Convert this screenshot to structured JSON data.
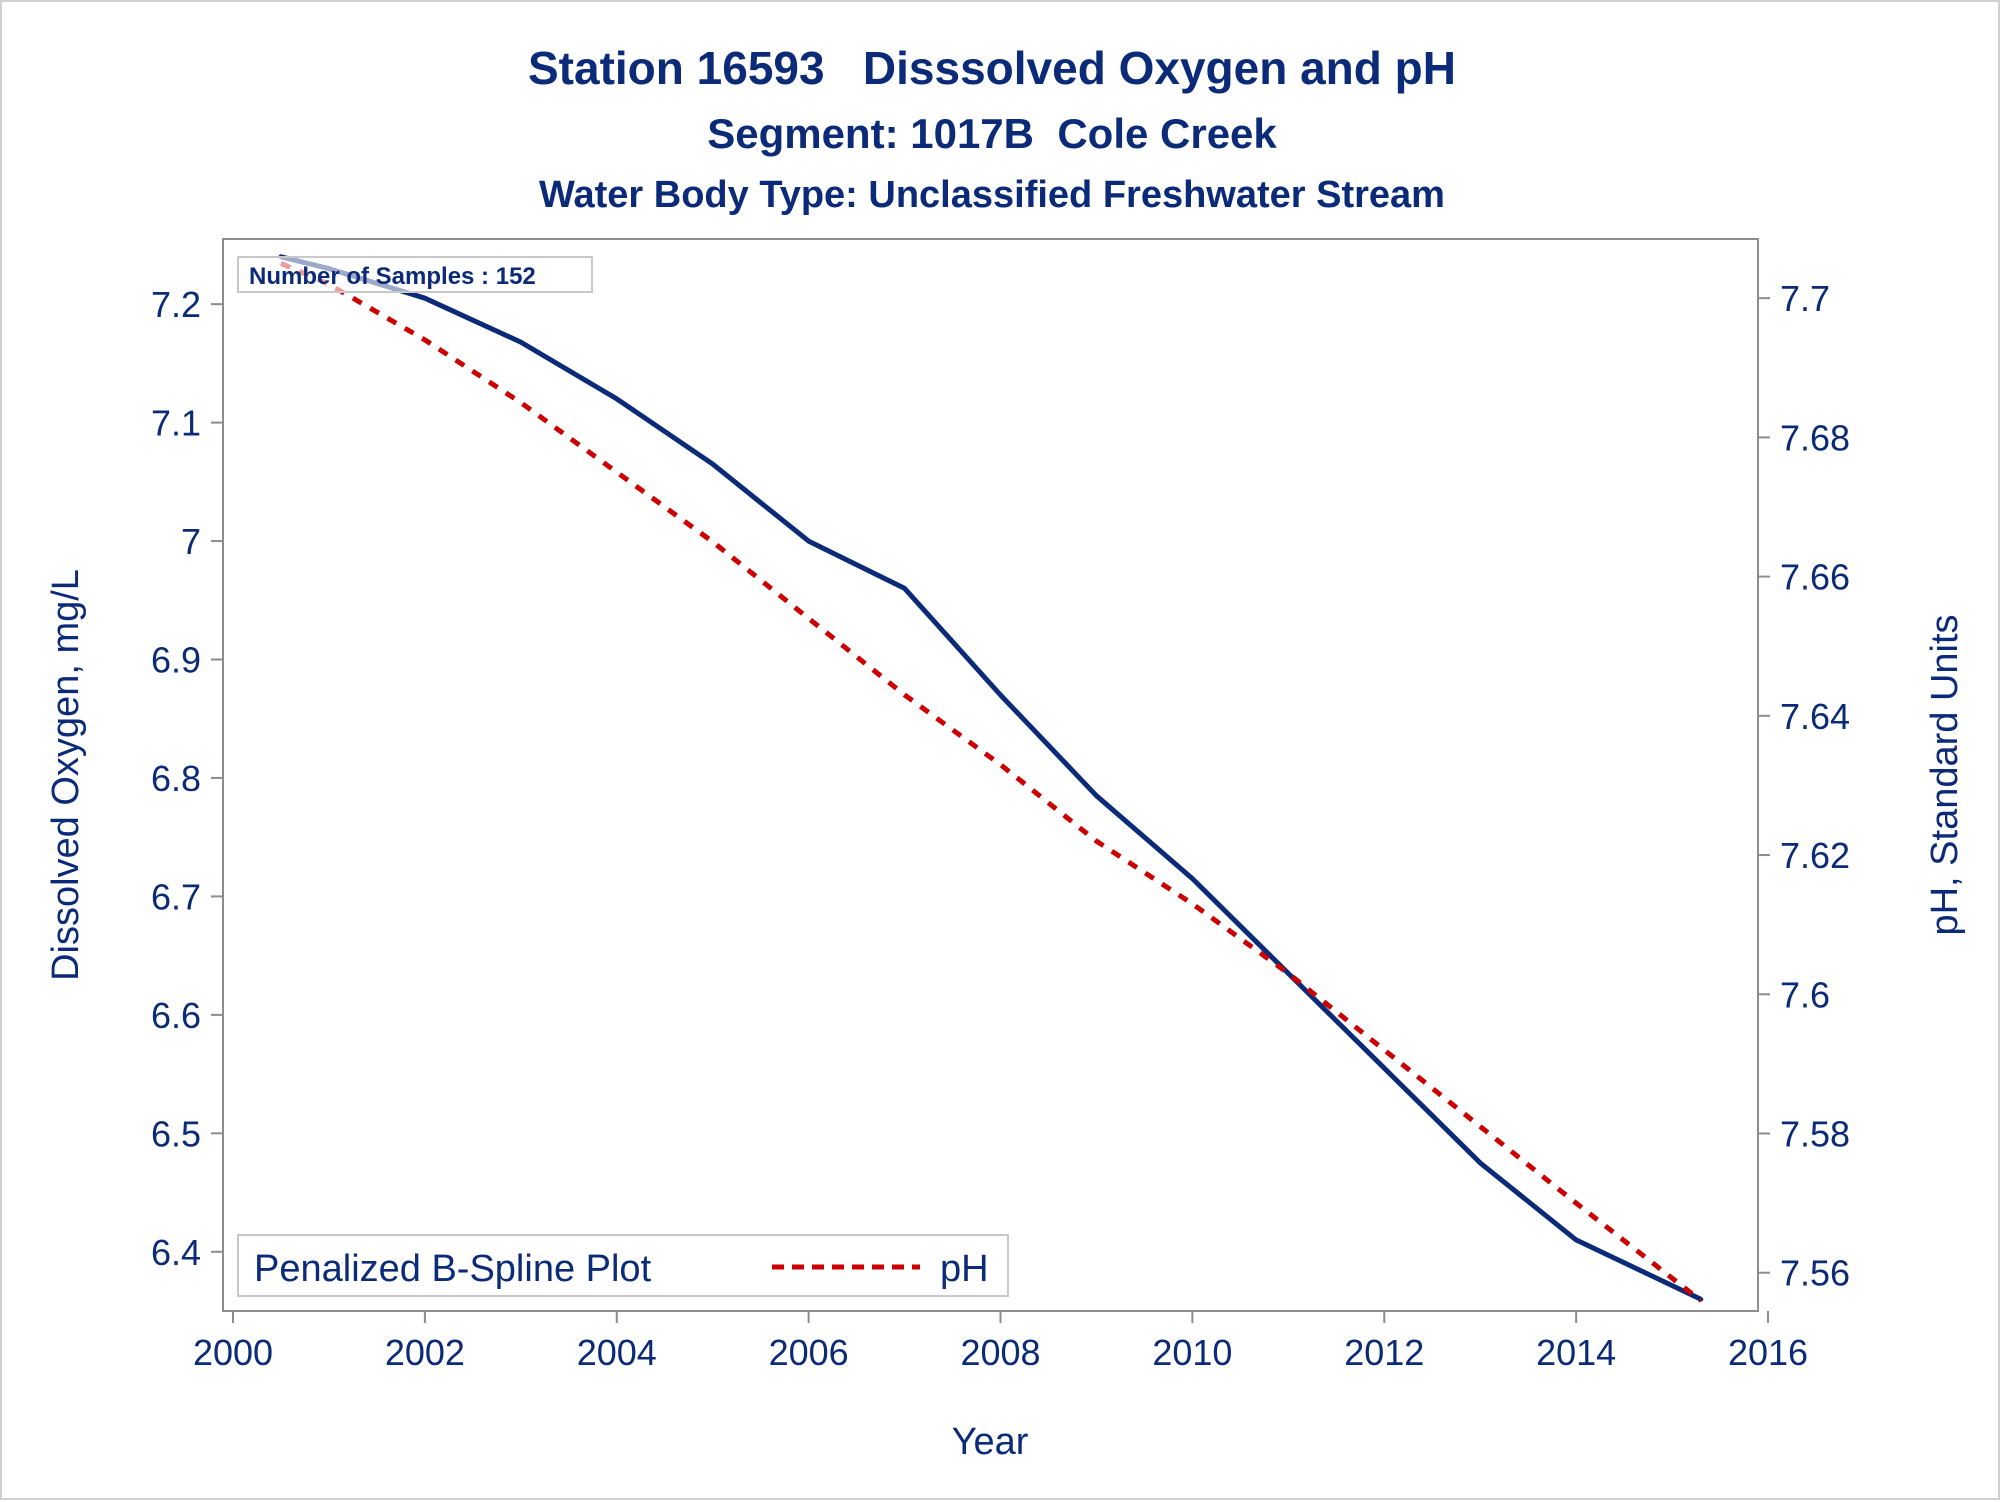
{
  "chart_data": {
    "type": "line",
    "title": "Station 16593   Disssolved Oxygen and pH",
    "subtitle": "Segment: 1017B  Cole Creek",
    "subtitle2": "Water Body Type: Unclassified Freshwater Stream",
    "xlabel": "Year",
    "ylabel": "Dissolved Oxygen, mg/L",
    "y2label": "pH, Standard Units",
    "xlim": [
      2000,
      2016
    ],
    "ylim": [
      6.35,
      7.255
    ],
    "y2lim": [
      7.5545,
      7.7085
    ],
    "x_ticks": [
      "2000",
      "2002",
      "2004",
      "2006",
      "2008",
      "2010",
      "2012",
      "2014",
      "2016"
    ],
    "y_ticks": [
      "6.4",
      "6.5",
      "6.6",
      "6.7",
      "6.8",
      "6.9",
      "7",
      "7.1",
      "7.2"
    ],
    "y2_ticks": [
      "7.56",
      "7.58",
      "7.6",
      "7.62",
      "7.64",
      "7.66",
      "7.68",
      "7.7"
    ],
    "annotation": "Number of Samples : 152",
    "legend_title": "Penalized B-Spline Plot",
    "legend_position": "bottom-left",
    "grid": false,
    "series": [
      {
        "name": "",
        "axis": "left",
        "color": "#0b2a78",
        "style": "solid",
        "x": [
          2000.5,
          2001.0,
          2002.0,
          2003.0,
          2004.0,
          2005.0,
          2006.0,
          2007.0,
          2008.0,
          2009.0,
          2010.0,
          2011.0,
          2012.0,
          2013.0,
          2014.0,
          2015.3
        ],
        "y": [
          7.24,
          7.23,
          7.205,
          7.168,
          7.12,
          7.065,
          7.0,
          6.96,
          6.87,
          6.785,
          6.715,
          6.635,
          6.555,
          6.475,
          6.41,
          6.36
        ]
      },
      {
        "name": "pH",
        "axis": "right",
        "color": "#cc0000",
        "style": "dashed",
        "x": [
          2000.5,
          2001.0,
          2002.0,
          2003.0,
          2004.0,
          2005.0,
          2006.0,
          2007.0,
          2008.0,
          2009.0,
          2010.0,
          2011.0,
          2012.0,
          2013.0,
          2014.0,
          2015.3
        ],
        "y": [
          7.705,
          7.702,
          7.694,
          7.685,
          7.675,
          7.665,
          7.654,
          7.643,
          7.633,
          7.622,
          7.613,
          7.603,
          7.592,
          7.581,
          7.57,
          7.556
        ]
      }
    ]
  }
}
